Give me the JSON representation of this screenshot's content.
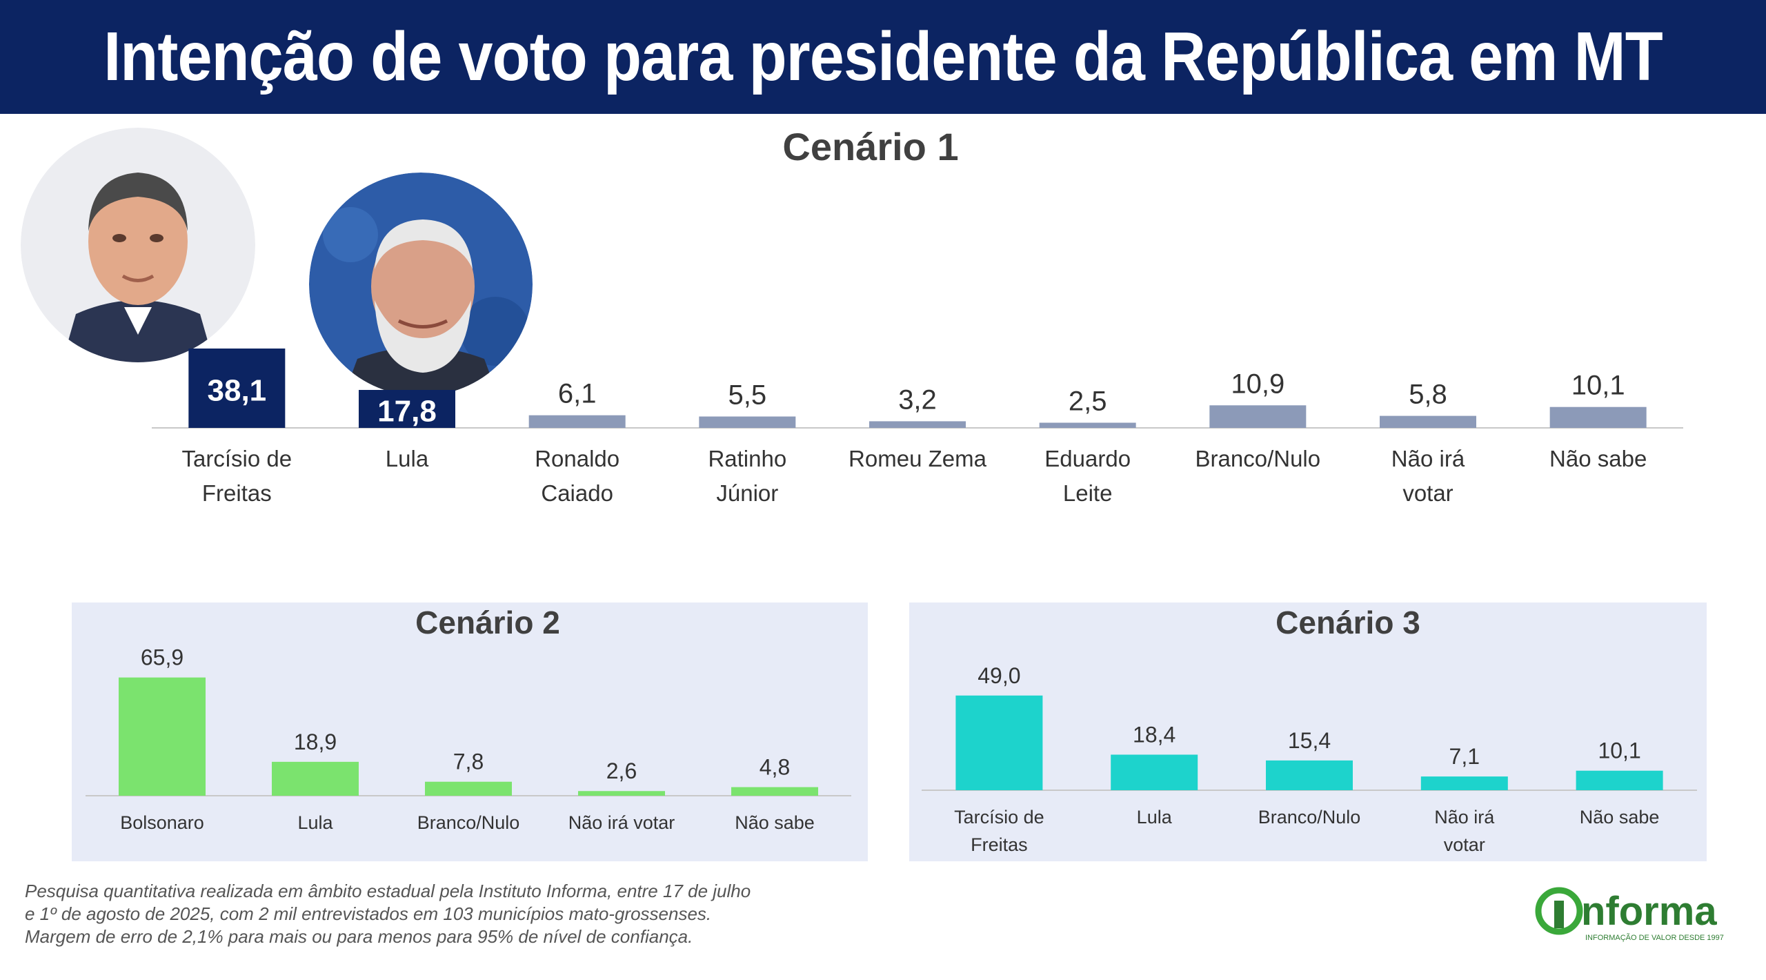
{
  "header": {
    "title": "Intenção de voto para presidente da República em MT"
  },
  "chart_data": [
    {
      "type": "bar",
      "title": "Cenário 1",
      "categories": [
        "Tarcísio de Freitas",
        "Lula",
        "Ronaldo Caiado",
        "Ratinho Júnior",
        "Romeu Zema",
        "Eduardo Leite",
        "Branco/Nulo",
        "Não irá votar",
        "Não sabe"
      ],
      "values": [
        38.1,
        17.8,
        6.1,
        5.5,
        3.2,
        2.5,
        10.9,
        5.8,
        10.1
      ],
      "value_labels": [
        "38,1",
        "17,8",
        "6,1",
        "5,5",
        "3,2",
        "2,5",
        "10,9",
        "5,8",
        "10,1"
      ],
      "colors": [
        "#0c2462",
        "#0c2462",
        "#8c9ab8",
        "#8c9ab8",
        "#8c9ab8",
        "#8c9ab8",
        "#8c9ab8",
        "#8c9ab8",
        "#8c9ab8"
      ],
      "highlight_labels": [
        true,
        true,
        false,
        false,
        false,
        false,
        false,
        false,
        false
      ],
      "grid": false,
      "legend": "none"
    },
    {
      "type": "bar",
      "title": "Cenário 2",
      "categories": [
        "Bolsonaro",
        "Lula",
        "Branco/Nulo",
        "Não irá votar",
        "Não sabe"
      ],
      "values": [
        65.9,
        18.9,
        7.8,
        2.6,
        4.8
      ],
      "value_labels": [
        "65,9",
        "18,9",
        "7,8",
        "2,6",
        "4,8"
      ],
      "colors": [
        "#7be36e",
        "#7be36e",
        "#7be36e",
        "#7be36e",
        "#7be36e"
      ],
      "grid": false,
      "legend": "none"
    },
    {
      "type": "bar",
      "title": "Cenário 3",
      "categories": [
        "Tarcísio de Freitas",
        "Lula",
        "Branco/Nulo",
        "Não irá votar",
        "Não sabe"
      ],
      "values": [
        49.0,
        18.4,
        15.4,
        7.1,
        10.1
      ],
      "value_labels": [
        "49,0",
        "18,4",
        "15,4",
        "7,1",
        "10,1"
      ],
      "colors": [
        "#1dd3cc",
        "#1dd3cc",
        "#1dd3cc",
        "#1dd3cc",
        "#1dd3cc"
      ],
      "grid": false,
      "legend": "none"
    }
  ],
  "footnote": {
    "lines": [
      "Pesquisa quantitativa realizada em âmbito estadual pela Instituto Informa, entre 17 de julho",
      "e 1º de agosto de 2025, com 2 mil entrevistados em 103 municípios mato-grossenses.",
      "Margem de erro de 2,1% para mais ou para menos para 95% de nível de confiança."
    ]
  },
  "logo": {
    "name": "informa",
    "tagline": "INFORMAÇÃO DE VALOR DESDE 1997"
  },
  "photos": [
    {
      "name": "photo-tarcisio",
      "bg": "#e9ebef",
      "skin": "#e2a98a",
      "hair": "#4a4a4a",
      "suit": "#2b3552"
    },
    {
      "name": "photo-lula",
      "bg": "#2d5ca8",
      "skin": "#d9a088",
      "hair": "#e8e8e8",
      "suit": "#2a3040"
    }
  ]
}
